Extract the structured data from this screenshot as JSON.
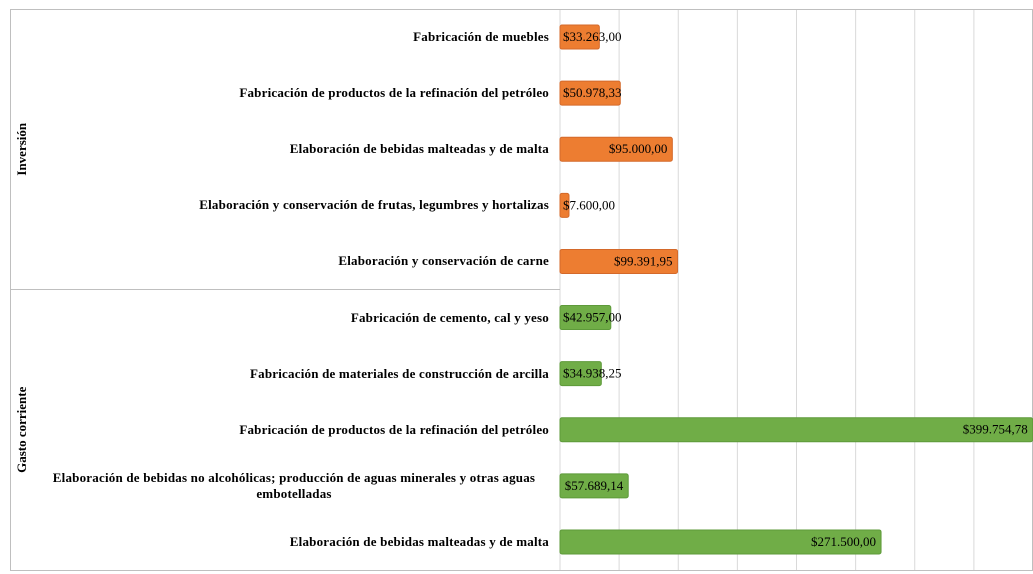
{
  "chart_data": {
    "type": "bar",
    "groups": [
      {
        "name": "Inversión",
        "color": "#ed7d31",
        "categories": [
          "Fabricación de muebles",
          "Fabricación de productos de la refinación del petróleo",
          "Elaboración de bebidas malteadas y de malta",
          "Elaboración y conservación de frutas, legumbres y hortalizas",
          "Elaboración y conservación de carne"
        ],
        "values": [
          33263,
          50978.33,
          95000,
          7600,
          99391.95
        ],
        "value_labels": [
          "$33.263,00",
          "$50.978,33",
          "$95.000,00",
          "$7.600,00",
          "$99.391,95"
        ]
      },
      {
        "name": "Gasto corriente",
        "color": "#70ad47",
        "categories": [
          "Fabricación de cemento, cal y yeso",
          "Fabricación de materiales de construcción de arcilla",
          "Fabricación de productos de la refinación del petróleo",
          "Elaboración de bebidas no alcohólicas; producción de aguas minerales y otras aguas embotelladas",
          "Elaboración de bebidas malteadas y de malta"
        ],
        "values": [
          42957,
          34938.25,
          399754.78,
          57689.14,
          271500
        ],
        "value_labels": [
          "$42.957,00",
          "$34.938,25",
          "$399.754,78",
          "$57.689,14",
          "$271.500,00"
        ]
      }
    ],
    "xlim": [
      0,
      400000
    ],
    "xticks": [
      0,
      50000,
      100000,
      150000,
      200000,
      250000,
      300000,
      350000,
      400000
    ],
    "grid": true
  }
}
